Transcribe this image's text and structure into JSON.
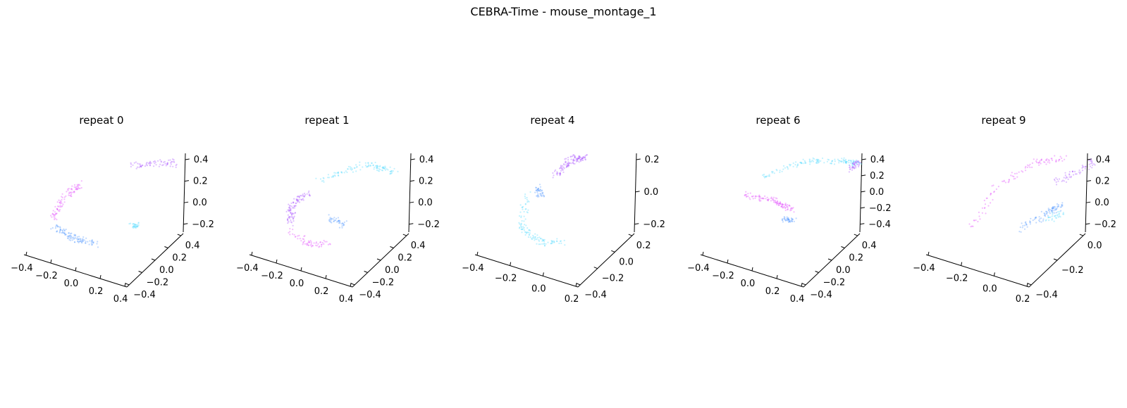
{
  "figure": {
    "title": "CEBRA-Time - mouse_montage_1"
  },
  "colors": {
    "magenta": "#e040fb",
    "violet": "#a64dff",
    "blue": "#4d94ff",
    "cyan": "#4dd9ff",
    "axis": "#000000"
  },
  "chart_data": [
    {
      "type": "scatter",
      "title": "repeat 0",
      "projection": "3d",
      "grid": false,
      "x_ticks": [
        "−0.4",
        "−0.2",
        "0.0",
        "0.2",
        "0.4"
      ],
      "y_ticks": [
        "−0.4",
        "−0.2",
        "0.0",
        "0.2",
        "0.4"
      ],
      "z_ticks": [
        "−0.2",
        "0.0",
        "0.2",
        "0.4"
      ],
      "xlim": [
        -0.45,
        0.45
      ],
      "ylim": [
        -0.45,
        0.45
      ],
      "zlim": [
        -0.3,
        0.45
      ],
      "series": [
        {
          "color": "magenta",
          "curve": [
            [
              -0.3,
              0.05,
              0.15
            ],
            [
              -0.38,
              -0.1,
              0.05
            ],
            [
              -0.4,
              -0.25,
              -0.1
            ]
          ],
          "count": 90
        },
        {
          "color": "blue",
          "curve": [
            [
              -0.38,
              -0.28,
              -0.18
            ],
            [
              -0.2,
              -0.3,
              -0.25
            ],
            [
              0.0,
              -0.28,
              -0.28
            ]
          ],
          "count": 110
        },
        {
          "color": "violet",
          "curve": [
            [
              0.0,
              0.35,
              0.3
            ],
            [
              0.25,
              0.38,
              0.38
            ],
            [
              0.4,
              0.4,
              0.4
            ]
          ],
          "count": 70
        },
        {
          "color": "cyan",
          "curve": [
            [
              0.2,
              0.0,
              -0.15
            ],
            [
              0.28,
              -0.05,
              -0.1
            ]
          ],
          "count": 30
        }
      ]
    },
    {
      "type": "scatter",
      "title": "repeat 1",
      "projection": "3d",
      "grid": false,
      "x_ticks": [
        "−0.4",
        "−0.2",
        "0.0",
        "0.2",
        "0.4"
      ],
      "y_ticks": [
        "−0.4",
        "−0.2",
        "0.0",
        "0.2",
        "0.4"
      ],
      "z_ticks": [
        "−0.2",
        "0.0",
        "0.2",
        "0.4"
      ],
      "xlim": [
        -0.45,
        0.45
      ],
      "ylim": [
        -0.45,
        0.45
      ],
      "zlim": [
        -0.3,
        0.45
      ],
      "series": [
        {
          "color": "violet",
          "curve": [
            [
              -0.25,
              0.0,
              0.1
            ],
            [
              -0.35,
              -0.1,
              0.0
            ],
            [
              -0.3,
              -0.25,
              -0.15
            ]
          ],
          "count": 100
        },
        {
          "color": "magenta",
          "curve": [
            [
              -0.28,
              -0.28,
              -0.2
            ],
            [
              -0.1,
              -0.3,
              -0.3
            ],
            [
              0.05,
              -0.25,
              -0.28
            ]
          ],
          "count": 60
        },
        {
          "color": "cyan",
          "curve": [
            [
              -0.2,
              0.1,
              0.2
            ],
            [
              0.1,
              0.35,
              0.35
            ],
            [
              0.35,
              0.38,
              0.3
            ]
          ],
          "count": 110
        },
        {
          "color": "blue",
          "curve": [
            [
              -0.05,
              -0.05,
              -0.1
            ],
            [
              0.1,
              -0.05,
              -0.15
            ]
          ],
          "count": 40
        }
      ]
    },
    {
      "type": "scatter",
      "title": "repeat 4",
      "projection": "3d",
      "grid": false,
      "x_ticks": [
        "−0.4",
        "−0.2",
        "0.0",
        "0.2"
      ],
      "y_ticks": [
        "−0.4",
        "−0.2",
        "0.0",
        "0.2"
      ],
      "z_ticks": [
        "−0.2",
        "0.0",
        "0.2"
      ],
      "xlim": [
        -0.45,
        0.3
      ],
      "ylim": [
        -0.45,
        0.3
      ],
      "zlim": [
        -0.35,
        0.3
      ],
      "series": [
        {
          "color": "violet",
          "curve": [
            [
              -0.2,
              0.1,
              0.1
            ],
            [
              -0.15,
              0.2,
              0.2
            ],
            [
              -0.05,
              0.25,
              0.25
            ]
          ],
          "count": 120
        },
        {
          "color": "blue",
          "curve": [
            [
              -0.28,
              0.0,
              0.0
            ],
            [
              -0.25,
              -0.05,
              -0.05
            ]
          ],
          "count": 40
        },
        {
          "color": "cyan",
          "curve": [
            [
              -0.35,
              -0.05,
              -0.05
            ],
            [
              -0.3,
              -0.25,
              -0.25
            ],
            [
              -0.1,
              -0.35,
              -0.3
            ],
            [
              0.05,
              -0.3,
              -0.28
            ]
          ],
          "count": 120
        }
      ]
    },
    {
      "type": "scatter",
      "title": "repeat 6",
      "projection": "3d",
      "grid": false,
      "x_ticks": [
        "−0.4",
        "−0.2",
        "0.0",
        "0.2",
        "0.4"
      ],
      "y_ticks": [
        "−0.4",
        "−0.2",
        "0.0",
        "0.2",
        "0.4"
      ],
      "z_ticks": [
        "−0.4",
        "−0.2",
        "0.0",
        "0.2",
        "0.4"
      ],
      "xlim": [
        -0.45,
        0.45
      ],
      "ylim": [
        -0.45,
        0.45
      ],
      "zlim": [
        -0.45,
        0.45
      ],
      "series": [
        {
          "color": "cyan",
          "curve": [
            [
              -0.3,
              0.1,
              0.15
            ],
            [
              0.0,
              0.3,
              0.35
            ],
            [
              0.3,
              0.4,
              0.4
            ],
            [
              0.45,
              0.4,
              0.4
            ]
          ],
          "count": 140
        },
        {
          "color": "violet",
          "curve": [
            [
              0.4,
              0.35,
              0.35
            ],
            [
              0.45,
              0.4,
              0.42
            ]
          ],
          "count": 40
        },
        {
          "color": "magenta",
          "curve": [
            [
              -0.4,
              0.0,
              -0.05
            ],
            [
              -0.1,
              -0.05,
              0.0
            ],
            [
              0.1,
              -0.1,
              -0.05
            ]
          ],
          "count": 110
        },
        {
          "color": "blue",
          "curve": [
            [
              0.05,
              -0.15,
              -0.15
            ],
            [
              0.15,
              -0.2,
              -0.1
            ]
          ],
          "count": 40
        }
      ]
    },
    {
      "type": "scatter",
      "title": "repeat 9",
      "projection": "3d",
      "grid": false,
      "x_ticks": [
        "−0.4",
        "−0.2",
        "0.0",
        "0.2"
      ],
      "y_ticks": [
        "−0.4",
        "−0.2",
        "0.0"
      ],
      "z_ticks": [
        "−0.2",
        "0.0",
        "0.2",
        "0.4"
      ],
      "xlim": [
        -0.45,
        0.3
      ],
      "ylim": [
        -0.45,
        0.15
      ],
      "zlim": [
        -0.3,
        0.45
      ],
      "series": [
        {
          "color": "magenta",
          "curve": [
            [
              -0.35,
              -0.2,
              -0.25
            ],
            [
              -0.3,
              0.0,
              0.05
            ],
            [
              -0.1,
              0.2,
              0.25
            ],
            [
              0.05,
              0.25,
              0.3
            ]
          ],
          "count": 100
        },
        {
          "color": "violet",
          "curve": [
            [
              0.1,
              0.1,
              0.15
            ],
            [
              0.25,
              0.2,
              0.3
            ],
            [
              0.3,
              0.25,
              0.35
            ]
          ],
          "count": 60
        },
        {
          "color": "blue",
          "curve": [
            [
              0.0,
              -0.2,
              -0.2
            ],
            [
              0.15,
              -0.05,
              -0.05
            ],
            [
              0.2,
              0.0,
              0.0
            ]
          ],
          "count": 90
        },
        {
          "color": "cyan",
          "curve": [
            [
              0.15,
              -0.1,
              -0.1
            ],
            [
              0.25,
              -0.05,
              -0.05
            ]
          ],
          "count": 30
        }
      ]
    }
  ]
}
